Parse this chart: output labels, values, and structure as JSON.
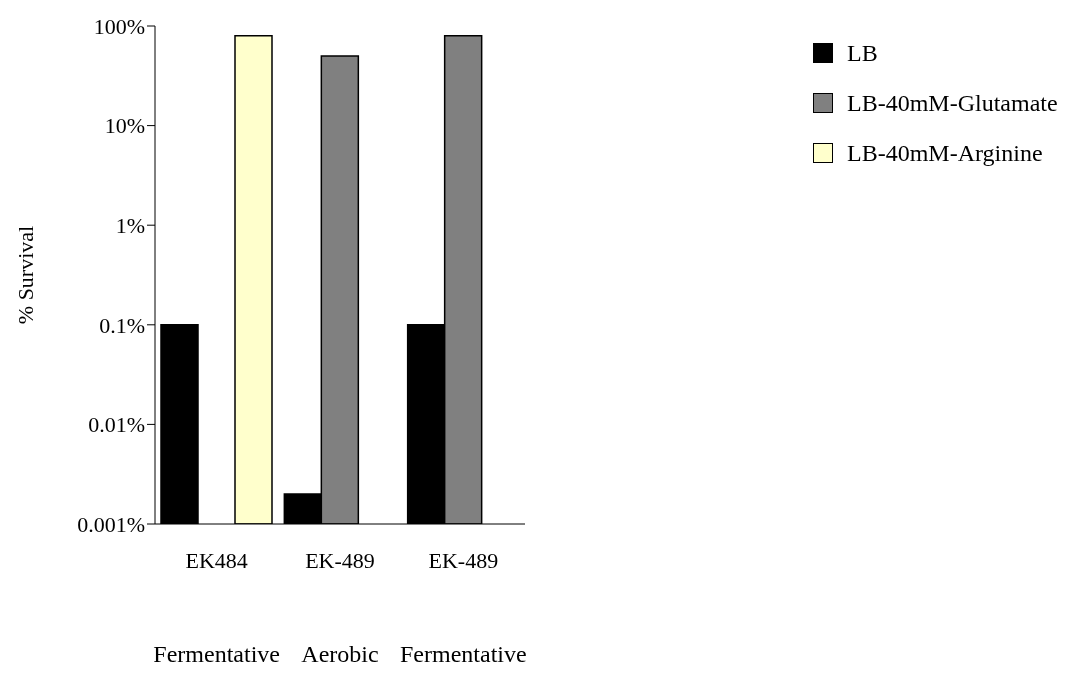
{
  "chart_data": {
    "type": "bar",
    "ylabel": "% Survival",
    "categories": [
      "EK484",
      "EK-489",
      "EK-489"
    ],
    "series": [
      {
        "name": "LB",
        "color": "#000000",
        "values": [
          0.1,
          0.002,
          0.1
        ]
      },
      {
        "name": "LB-40mM-Glutamate",
        "color": "#808080",
        "values": [
          null,
          50,
          80
        ]
      },
      {
        "name": "LB-40mM-Arginine",
        "color": "#ffffcc",
        "values": [
          80,
          null,
          null
        ]
      }
    ],
    "log": true,
    "ylim": [
      0.001,
      100
    ],
    "yticks": [
      {
        "value": 0.001,
        "label": "0.001%"
      },
      {
        "value": 0.01,
        "label": "0.01%"
      },
      {
        "value": 0.1,
        "label": "0.1%"
      },
      {
        "value": 1,
        "label": "1%"
      },
      {
        "value": 10,
        "label": "10%"
      },
      {
        "value": 100,
        "label": "100%"
      }
    ],
    "annotations": [
      "Fermentative",
      "Aerobic",
      "Fermentative"
    ],
    "grid": false,
    "legend": "top right"
  }
}
